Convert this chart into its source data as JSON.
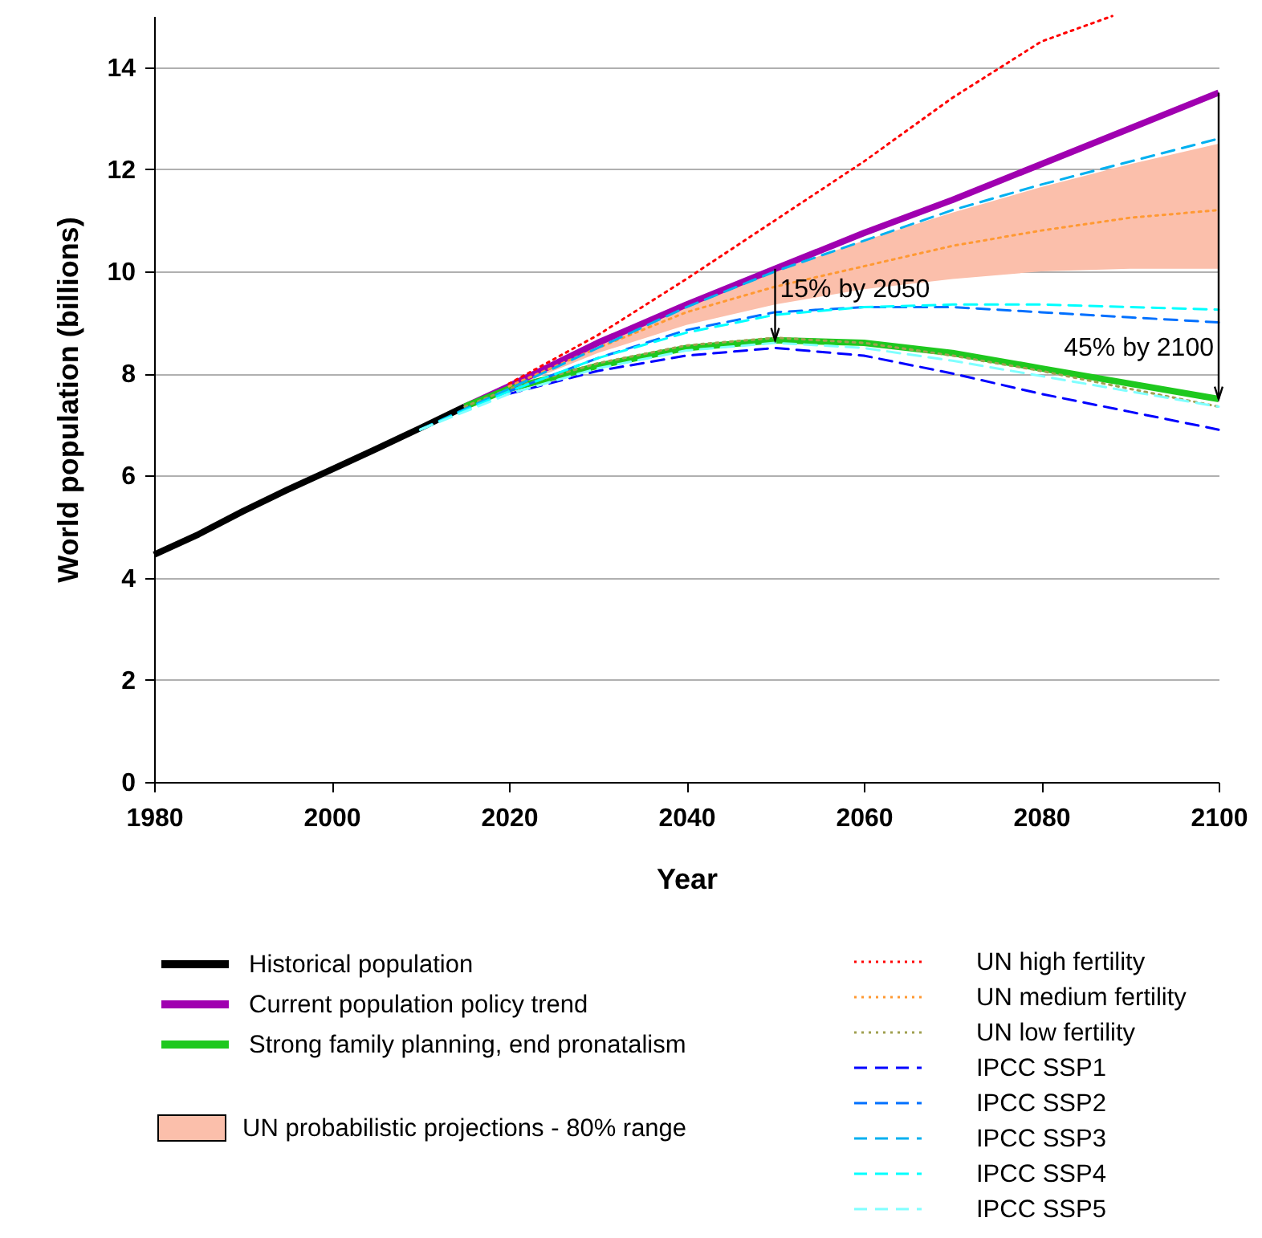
{
  "chart_data": {
    "type": "line",
    "xlabel": "Year",
    "ylabel": "World population (billions)",
    "xlim": [
      1980,
      2100
    ],
    "xticks": [
      1980,
      2000,
      2020,
      2040,
      2060,
      2080,
      2100
    ],
    "ylim": [
      0,
      15
    ],
    "yticks": [
      0,
      2,
      4,
      6,
      8,
      10,
      12,
      14
    ],
    "grid": "y",
    "legend": "bottom",
    "marker": "none",
    "series": [
      {
        "name": "UN probabilistic projections - 80% range",
        "type": "area",
        "color": "#fbbfab",
        "x": [
          2015,
          2020,
          2030,
          2040,
          2050,
          2060,
          2070,
          2080,
          2090,
          2100
        ],
        "values": [
          null,
          null,
          null,
          null,
          null,
          null,
          null,
          null,
          null,
          null
        ],
        "lower": [
          7.35,
          7.7,
          8.4,
          8.95,
          9.35,
          9.65,
          9.85,
          10.0,
          10.05,
          10.05
        ],
        "upper": [
          7.35,
          7.8,
          8.6,
          9.35,
          10.0,
          10.6,
          11.15,
          11.65,
          12.1,
          12.5
        ]
      },
      {
        "name": "Historical population",
        "color": "#000000",
        "line_style": "solid",
        "x": [
          1980,
          1985,
          1990,
          1995,
          2000,
          2005,
          2010,
          2015
        ],
        "values": [
          4.45,
          4.85,
          5.3,
          5.72,
          6.12,
          6.52,
          6.93,
          7.35
        ]
      },
      {
        "name": "Current population policy trend",
        "color": "#a000b0",
        "line_style": "solid",
        "x": [
          2015,
          2020,
          2030,
          2040,
          2050,
          2060,
          2070,
          2080,
          2090,
          2100
        ],
        "values": [
          7.35,
          7.75,
          8.6,
          9.35,
          10.05,
          10.75,
          11.4,
          12.1,
          12.8,
          13.5
        ]
      },
      {
        "name": "Strong family planning, end pronatalism",
        "color": "#1ec81e",
        "line_style": "solid",
        "x": [
          2015,
          2020,
          2030,
          2040,
          2050,
          2060,
          2070,
          2080,
          2090,
          2100
        ],
        "values": [
          7.35,
          7.7,
          8.15,
          8.5,
          8.65,
          8.6,
          8.4,
          8.1,
          7.8,
          7.5
        ]
      },
      {
        "name": "UN high fertility",
        "color": "#ff0000",
        "line_style": "dotted",
        "x": [
          2020,
          2030,
          2040,
          2050,
          2060,
          2070,
          2080,
          2088
        ],
        "values": [
          7.8,
          8.75,
          9.85,
          11.0,
          12.15,
          13.4,
          14.5,
          15.0
        ]
      },
      {
        "name": "UN medium fertility",
        "color": "#ff9933",
        "line_style": "dotted",
        "x": [
          2020,
          2030,
          2040,
          2050,
          2060,
          2070,
          2080,
          2090,
          2100
        ],
        "values": [
          7.75,
          8.5,
          9.2,
          9.7,
          10.1,
          10.5,
          10.8,
          11.05,
          11.2
        ]
      },
      {
        "name": "UN low fertility",
        "color": "#a0a050",
        "line_style": "dotted",
        "x": [
          2015,
          2020,
          2030,
          2040,
          2050,
          2060,
          2070,
          2080,
          2090,
          2100
        ],
        "values": [
          7.35,
          7.7,
          8.2,
          8.55,
          8.7,
          8.6,
          8.35,
          8.05,
          7.7,
          7.35
        ]
      },
      {
        "name": "IPCC SSP1",
        "color": "#0000ff",
        "line_style": "dashed",
        "x": [
          2020,
          2030,
          2040,
          2050,
          2060,
          2070,
          2080,
          2090,
          2100
        ],
        "values": [
          7.6,
          8.05,
          8.35,
          8.5,
          8.35,
          8.0,
          7.6,
          7.25,
          6.9
        ]
      },
      {
        "name": "IPCC SSP2",
        "color": "#0070ff",
        "line_style": "dashed",
        "x": [
          2020,
          2030,
          2040,
          2050,
          2060,
          2070,
          2080,
          2090,
          2100
        ],
        "values": [
          7.65,
          8.3,
          8.85,
          9.2,
          9.3,
          9.3,
          9.2,
          9.1,
          9.0
        ]
      },
      {
        "name": "IPCC SSP3",
        "color": "#00b0f0",
        "line_style": "dashed",
        "x": [
          2010,
          2020,
          2030,
          2040,
          2050,
          2060,
          2070,
          2080,
          2090,
          2100
        ],
        "values": [
          6.9,
          7.7,
          8.5,
          9.3,
          10.0,
          10.6,
          11.2,
          11.7,
          12.15,
          12.6
        ]
      },
      {
        "name": "IPCC SSP4",
        "color": "#00ffff",
        "line_style": "dashed",
        "x": [
          2010,
          2020,
          2030,
          2040,
          2050,
          2060,
          2070,
          2080,
          2090,
          2100
        ],
        "values": [
          6.9,
          7.65,
          8.3,
          8.8,
          9.15,
          9.3,
          9.35,
          9.35,
          9.3,
          9.25
        ]
      },
      {
        "name": "IPCC SSP5",
        "color": "#80ffff",
        "line_style": "dashed",
        "x": [
          2010,
          2020,
          2030,
          2040,
          2050,
          2060,
          2070,
          2080,
          2090,
          2100
        ],
        "values": [
          6.9,
          7.6,
          8.1,
          8.45,
          8.6,
          8.5,
          8.25,
          7.95,
          7.65,
          7.35
        ]
      }
    ],
    "annotations": [
      {
        "text": "15% by 2050",
        "x": 2050,
        "y": 8.65
      },
      {
        "text": "45% by 2100",
        "x": 2100,
        "y": 7.5
      }
    ]
  }
}
